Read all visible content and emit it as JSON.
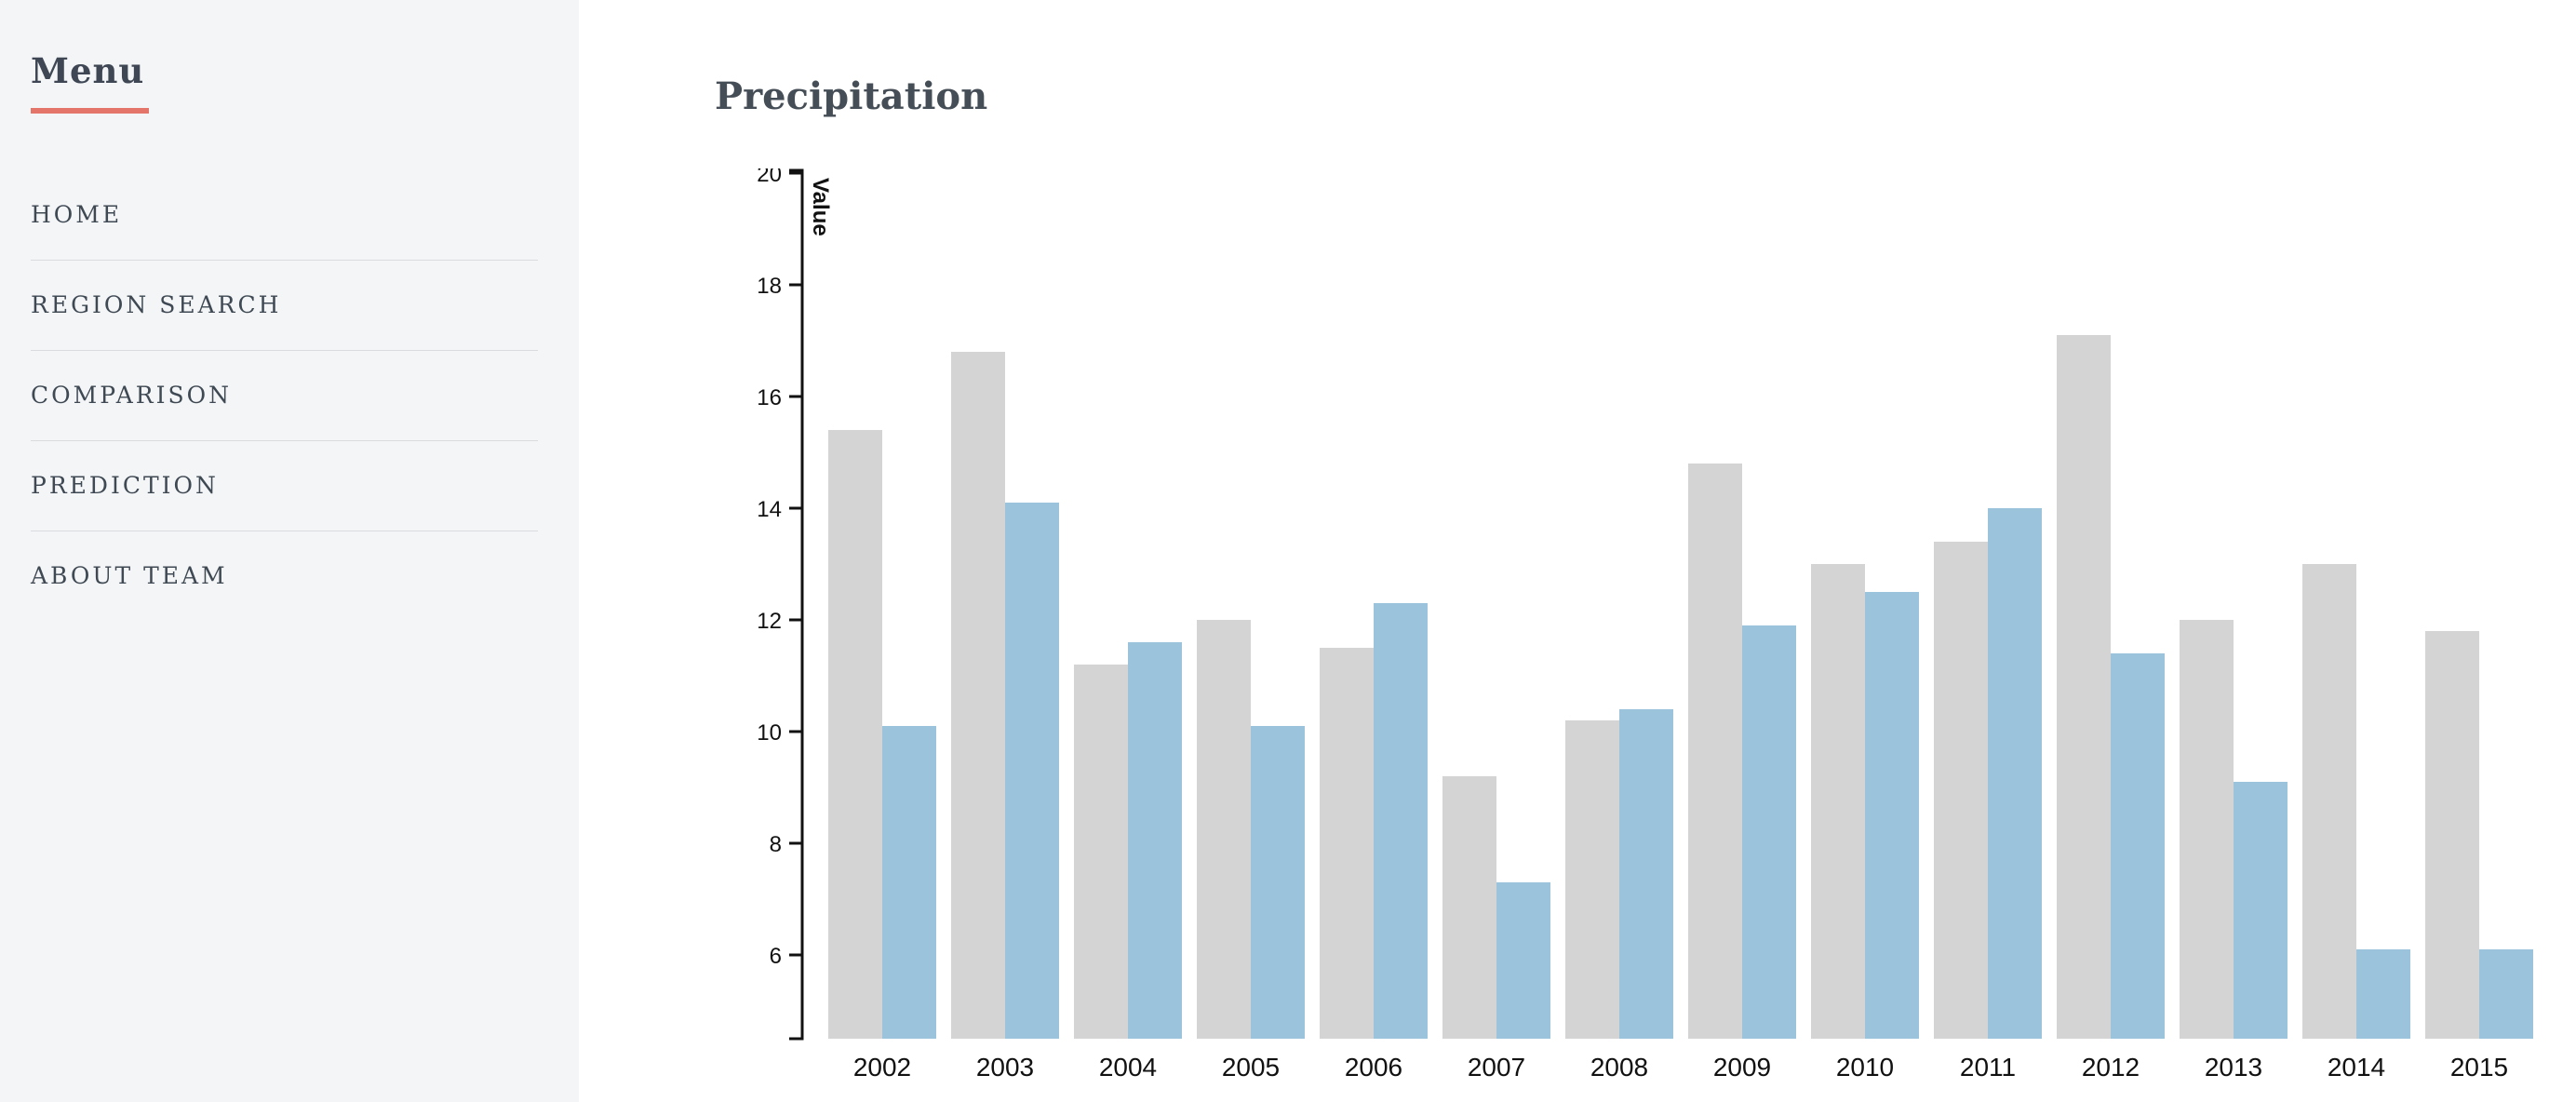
{
  "sidebar": {
    "title": "Menu",
    "items": [
      {
        "label": "HOME"
      },
      {
        "label": "REGION SEARCH"
      },
      {
        "label": "COMPARISON"
      },
      {
        "label": "PREDICTION"
      },
      {
        "label": "ABOUT TEAM"
      }
    ]
  },
  "main": {
    "title": "Precipitation"
  },
  "chart_data": {
    "type": "bar",
    "title": "Precipitation",
    "categories": [
      "2002",
      "2003",
      "2004",
      "2005",
      "2006",
      "2007",
      "2008",
      "2009",
      "2010",
      "2011",
      "2012",
      "2013",
      "2014",
      "2015"
    ],
    "series": [
      {
        "name": "gray",
        "color": "#d4d4d4",
        "values": [
          15.4,
          16.8,
          11.2,
          12.0,
          11.5,
          9.2,
          10.2,
          14.8,
          13.0,
          13.4,
          17.1,
          12.0,
          13.0,
          11.8
        ]
      },
      {
        "name": "blue",
        "color": "#9cc3dc",
        "values": [
          10.1,
          14.1,
          11.6,
          10.1,
          12.3,
          7.3,
          10.4,
          11.9,
          12.5,
          14.0,
          11.4,
          9.1,
          6.1,
          6.1
        ]
      }
    ],
    "xlabel": "",
    "ylabel": "Value",
    "yticks": [
      20,
      18,
      16,
      14,
      12,
      10,
      8,
      6
    ],
    "ylim": [
      4.5,
      20
    ],
    "grid": false,
    "legend_position": "none"
  },
  "colors": {
    "sidebar_bg": "#f4f5f7",
    "separator": "#d9dbde",
    "menu_text": "#3f4953",
    "accent": "#e4756a",
    "title_text": "#454e56",
    "bar_gray": "#d4d4d4",
    "bar_blue": "#9cc3dc",
    "axis": "#111111"
  }
}
